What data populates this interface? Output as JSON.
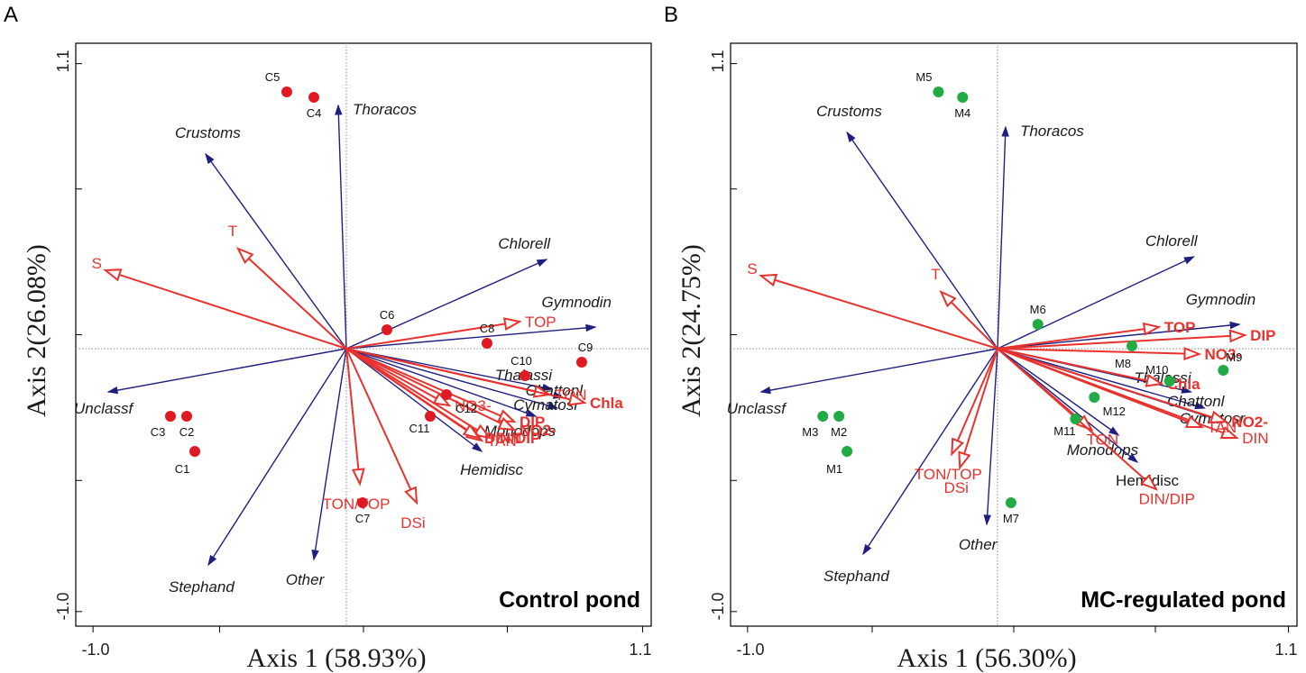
{
  "colors": {
    "species": "#1f1f80",
    "env": "#e8322e",
    "control_site": "#e01a22",
    "mc_site": "#22aa44"
  },
  "chart_data": [
    {
      "type": "scatter",
      "panel": "A",
      "title": "Control pond",
      "xlabel": "Axis 1 (58.93%)",
      "ylabel": "Axis 2(26.08%)",
      "xlim": [
        -1.0,
        1.1
      ],
      "ylim": [
        -1.0,
        1.1
      ],
      "xticks": [
        "-1.0",
        "1.1"
      ],
      "yticks": [
        "1.1",
        "-1.0"
      ],
      "species": [
        {
          "name": "Thoracos",
          "x": -0.03,
          "y": 0.9,
          "italic": true
        },
        {
          "name": "Crustoms",
          "x": -0.52,
          "y": 0.72,
          "italic": true
        },
        {
          "name": "Chlorell",
          "x": 0.74,
          "y": 0.33,
          "italic": true
        },
        {
          "name": "Gymnodin",
          "x": 0.92,
          "y": 0.08,
          "italic": true
        },
        {
          "name": "Thalassi",
          "x": 0.76,
          "y": -0.15,
          "italic": true
        },
        {
          "name": "Chattonl",
          "x": 0.8,
          "y": -0.18,
          "italic": true
        },
        {
          "name": "Cymatosr",
          "x": 0.78,
          "y": -0.22,
          "italic": true
        },
        {
          "name": "Monodops",
          "x": 0.7,
          "y": -0.25,
          "italic": true
        },
        {
          "name": "Hemidisc",
          "x": 0.5,
          "y": -0.38,
          "italic": true
        },
        {
          "name": "Unclassf",
          "x": -0.88,
          "y": -0.16,
          "italic": true
        },
        {
          "name": "Stephand",
          "x": -0.51,
          "y": -0.8,
          "italic": true
        },
        {
          "name": "Other",
          "x": -0.12,
          "y": -0.78,
          "italic": true
        }
      ],
      "env": [
        {
          "name": "T",
          "x": -0.4,
          "y": 0.37,
          "bold": false
        },
        {
          "name": "S",
          "x": -0.89,
          "y": 0.29,
          "bold": false
        },
        {
          "name": "TOP",
          "x": 0.64,
          "y": 0.1,
          "bold": false
        },
        {
          "name": "TON",
          "x": 0.75,
          "y": -0.17,
          "bold": false
        },
        {
          "name": "Chla",
          "x": 0.88,
          "y": -0.2,
          "bold": true
        },
        {
          "name": "DIP",
          "x": 0.62,
          "y": -0.27,
          "bold": true
        },
        {
          "name": "NO2-",
          "x": 0.62,
          "y": -0.3,
          "bold": true
        },
        {
          "name": "DIN",
          "x": 0.53,
          "y": -0.33,
          "bold": false
        },
        {
          "name": "TAN",
          "x": 0.5,
          "y": -0.34,
          "bold": false
        },
        {
          "name": "DIN/DIP",
          "x": 0.49,
          "y": -0.33,
          "bold": true
        },
        {
          "name": "NO3-",
          "x": 0.38,
          "y": -0.21,
          "bold": false
        },
        {
          "name": "TON/TOP",
          "x": 0.05,
          "y": -0.5,
          "bold": false
        },
        {
          "name": "DSi",
          "x": 0.26,
          "y": -0.57,
          "bold": false
        }
      ],
      "sites": [
        {
          "name": "C1",
          "x": -0.56,
          "y": -0.38
        },
        {
          "name": "C2",
          "x": -0.59,
          "y": -0.25
        },
        {
          "name": "C3",
          "x": -0.65,
          "y": -0.25
        },
        {
          "name": "C4",
          "x": -0.12,
          "y": 0.93
        },
        {
          "name": "C5",
          "x": -0.22,
          "y": 0.95
        },
        {
          "name": "C6",
          "x": 0.15,
          "y": 0.07
        },
        {
          "name": "C7",
          "x": 0.06,
          "y": -0.57
        },
        {
          "name": "C8",
          "x": 0.52,
          "y": 0.02
        },
        {
          "name": "C9",
          "x": 0.87,
          "y": -0.05
        },
        {
          "name": "C10",
          "x": 0.66,
          "y": -0.1
        },
        {
          "name": "C11",
          "x": 0.31,
          "y": -0.25
        },
        {
          "name": "C12",
          "x": 0.37,
          "y": -0.17
        }
      ]
    },
    {
      "type": "scatter",
      "panel": "B",
      "title": "MC-regulated pond",
      "xlabel": "Axis 1 (56.30%)",
      "ylabel": "Axis 2(24.75%)",
      "xlim": [
        -1.0,
        1.1
      ],
      "ylim": [
        -1.0,
        1.1
      ],
      "xticks": [
        "-1.0",
        "1.1"
      ],
      "yticks": [
        "1.1",
        "-1.0"
      ],
      "species": [
        {
          "name": "Thoracos",
          "x": 0.03,
          "y": 0.82,
          "italic": true
        },
        {
          "name": "Crustoms",
          "x": -0.56,
          "y": 0.8,
          "italic": true
        },
        {
          "name": "Chlorell",
          "x": 0.73,
          "y": 0.34,
          "italic": true
        },
        {
          "name": "Gymnodin",
          "x": 0.9,
          "y": 0.09,
          "italic": true
        },
        {
          "name": "Thalassi",
          "x": 0.72,
          "y": -0.16,
          "italic": true
        },
        {
          "name": "Chattonl",
          "x": 0.77,
          "y": -0.22,
          "italic": true
        },
        {
          "name": "Cymatosr",
          "x": 0.84,
          "y": -0.27,
          "italic": true
        },
        {
          "name": "Monodops",
          "x": 0.45,
          "y": -0.32,
          "italic": true
        },
        {
          "name": "Hemidisc",
          "x": 0.52,
          "y": -0.42,
          "italic": false
        },
        {
          "name": "Unclassf",
          "x": -0.88,
          "y": -0.16,
          "italic": true
        },
        {
          "name": "Stephand",
          "x": -0.5,
          "y": -0.76,
          "italic": true
        },
        {
          "name": "Other",
          "x": -0.04,
          "y": -0.65,
          "italic": true
        }
      ],
      "env": [
        {
          "name": "T",
          "x": -0.21,
          "y": 0.21,
          "bold": false
        },
        {
          "name": "S",
          "x": -0.88,
          "y": 0.27,
          "bold": false
        },
        {
          "name": "TOP",
          "x": 0.6,
          "y": 0.08,
          "bold": true
        },
        {
          "name": "DIP",
          "x": 0.92,
          "y": 0.05,
          "bold": true
        },
        {
          "name": "NO3-",
          "x": 0.75,
          "y": -0.02,
          "bold": true
        },
        {
          "name": "Chla",
          "x": 0.61,
          "y": -0.13,
          "bold": true
        },
        {
          "name": "NO2-",
          "x": 0.85,
          "y": -0.27,
          "bold": true
        },
        {
          "name": "DIN",
          "x": 0.89,
          "y": -0.33,
          "bold": false
        },
        {
          "name": "TAN",
          "x": 0.76,
          "y": -0.29,
          "bold": false
        },
        {
          "name": "TON",
          "x": 0.35,
          "y": -0.3,
          "bold": false
        },
        {
          "name": "DIN/DIP",
          "x": 0.59,
          "y": -0.52,
          "bold": false
        },
        {
          "name": "TON/TOP",
          "x": -0.17,
          "y": -0.39,
          "bold": false
        },
        {
          "name": "DSi",
          "x": -0.14,
          "y": -0.44,
          "bold": false
        }
      ],
      "sites": [
        {
          "name": "M1",
          "x": -0.56,
          "y": -0.38
        },
        {
          "name": "M2",
          "x": -0.59,
          "y": -0.25
        },
        {
          "name": "M3",
          "x": -0.65,
          "y": -0.25
        },
        {
          "name": "M4",
          "x": -0.13,
          "y": 0.93
        },
        {
          "name": "M5",
          "x": -0.22,
          "y": 0.95
        },
        {
          "name": "M6",
          "x": 0.15,
          "y": 0.09
        },
        {
          "name": "M7",
          "x": 0.05,
          "y": -0.57
        },
        {
          "name": "M8",
          "x": 0.5,
          "y": 0.01
        },
        {
          "name": "M9",
          "x": 0.84,
          "y": -0.08
        },
        {
          "name": "M10",
          "x": 0.64,
          "y": -0.12
        },
        {
          "name": "M11",
          "x": 0.29,
          "y": -0.26
        },
        {
          "name": "M12",
          "x": 0.36,
          "y": -0.18
        }
      ]
    }
  ]
}
